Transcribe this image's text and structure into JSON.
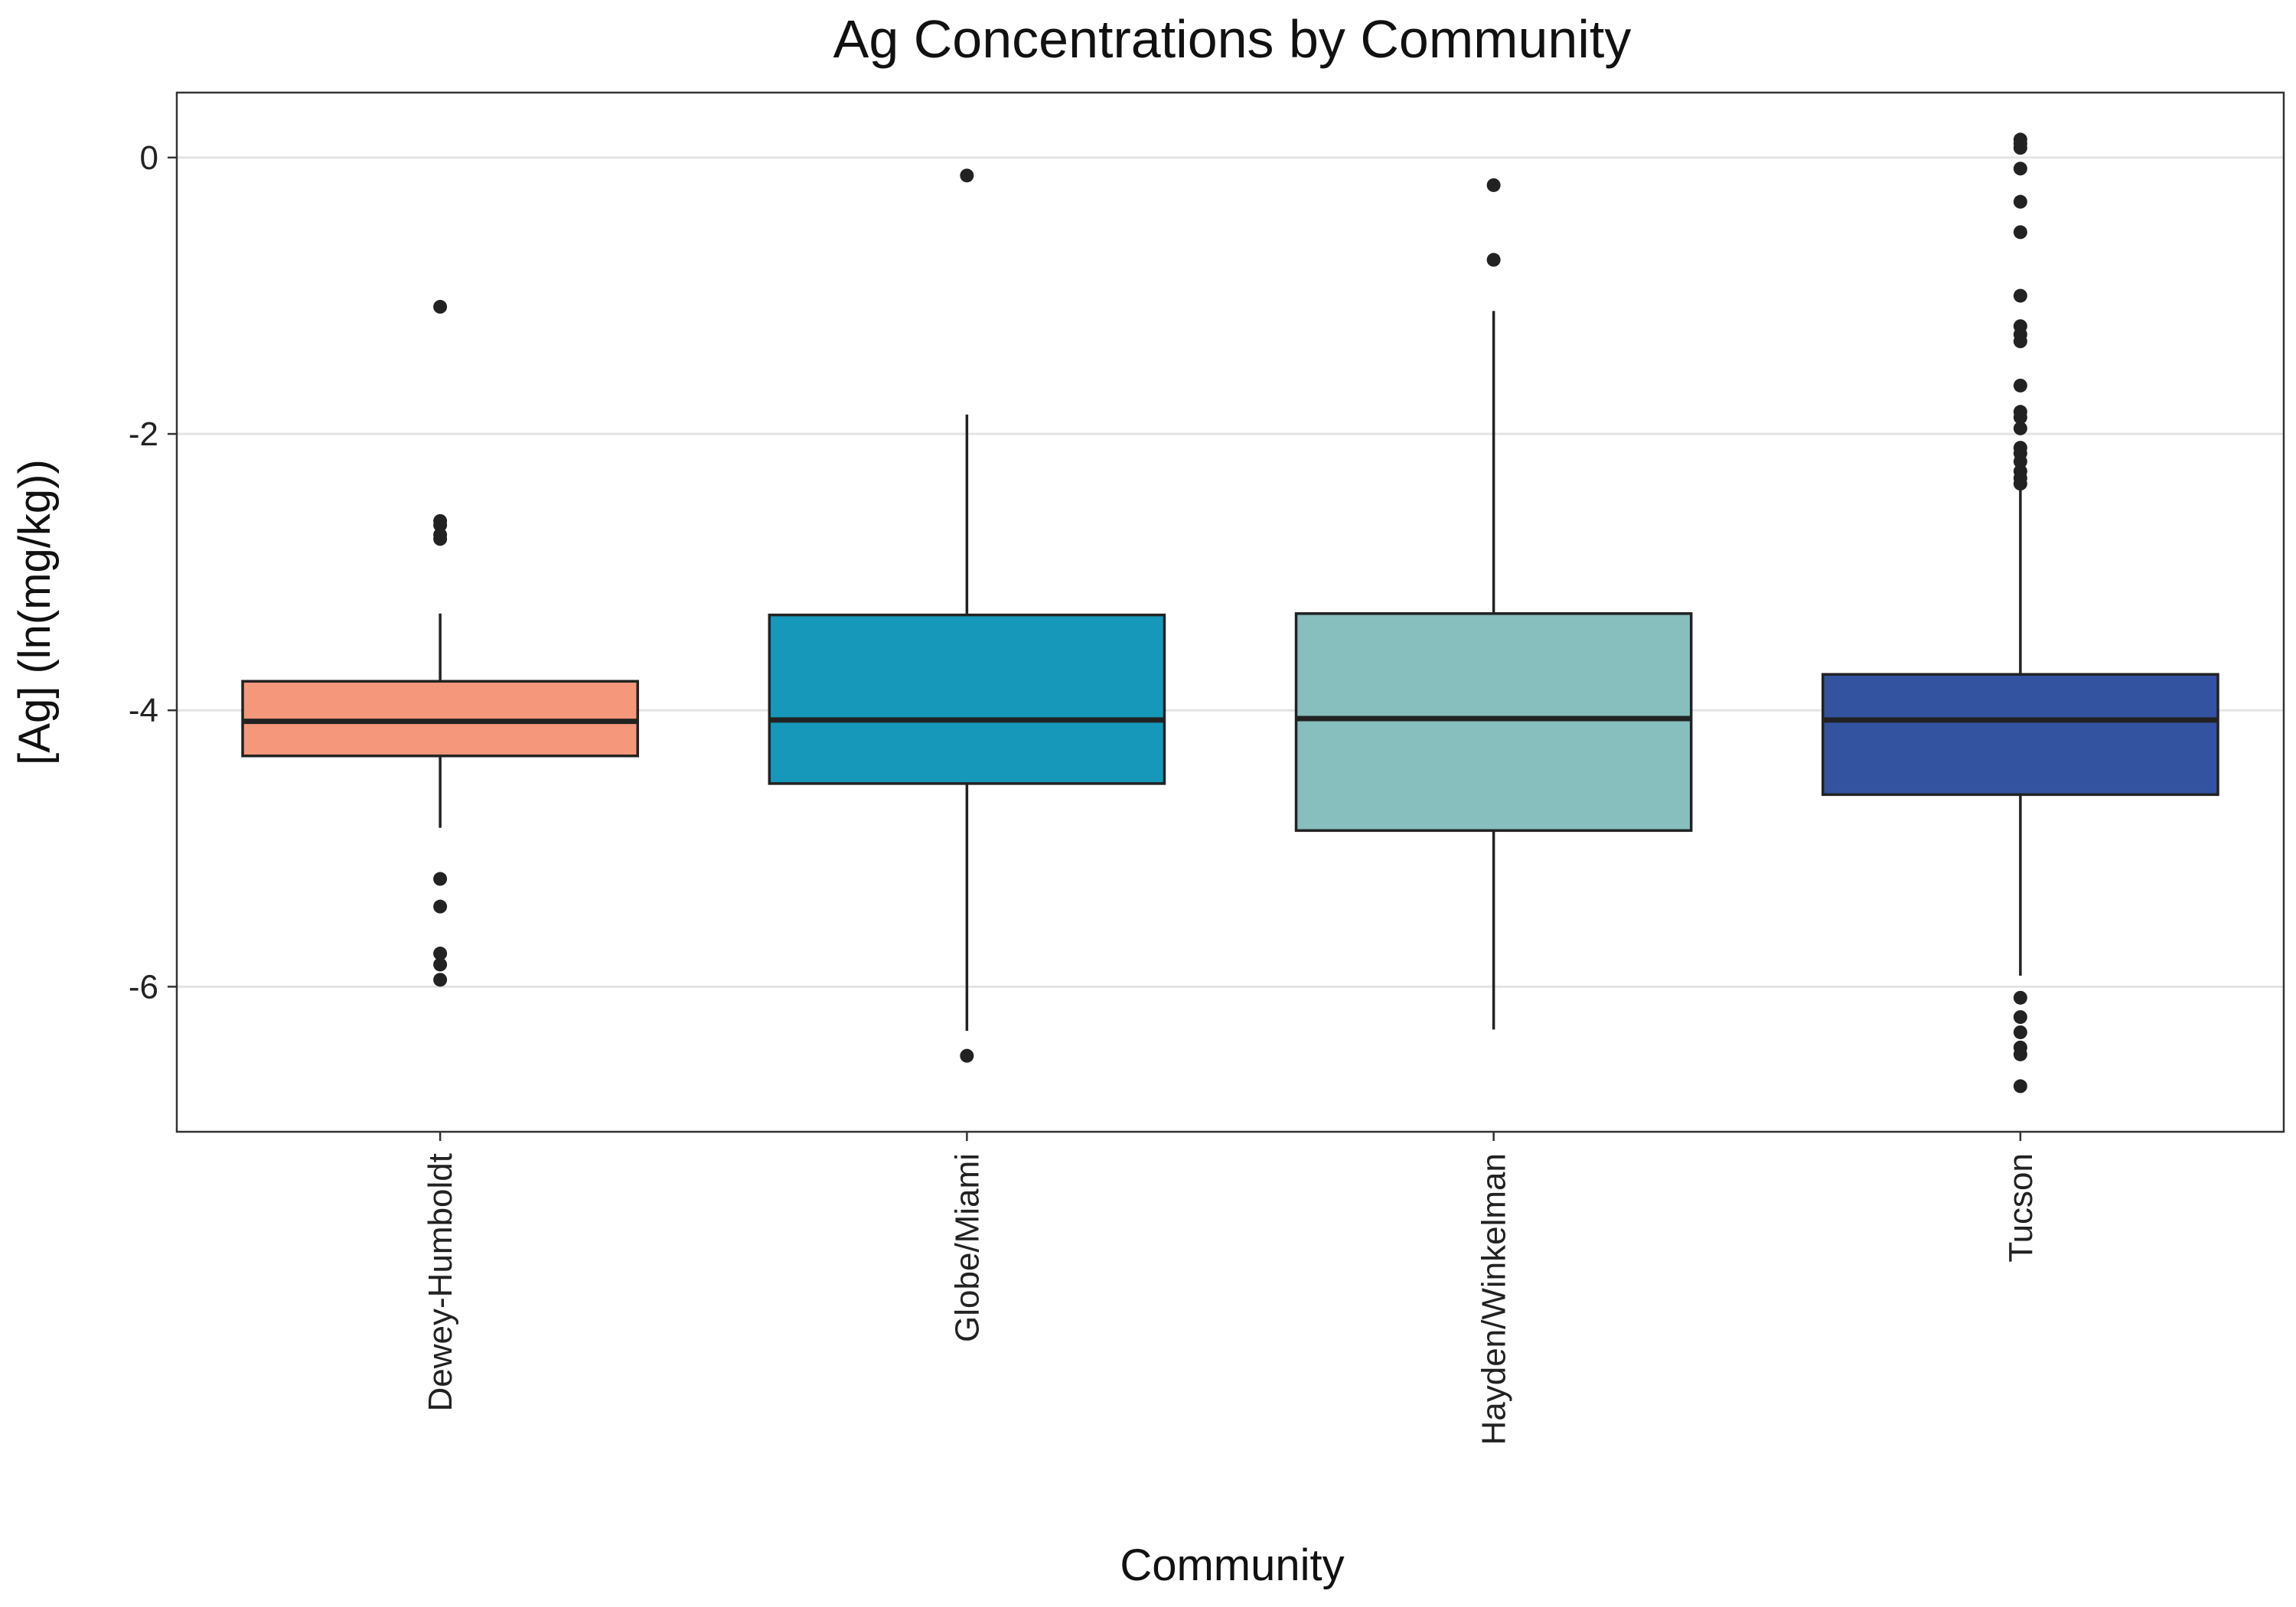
{
  "chart_data": {
    "type": "boxplot",
    "title": "Ag Concentrations by Community",
    "xlabel": "Community",
    "ylabel": "[Ag] (ln(mg/kg))",
    "ylim": [
      -7.05,
      0.47
    ],
    "yticks": [
      {
        "value": 0,
        "label": "0"
      },
      {
        "value": -2,
        "label": "-2"
      },
      {
        "value": -4,
        "label": "-4"
      },
      {
        "value": -6,
        "label": "-6"
      }
    ],
    "grid": "horizontal",
    "legend": "none",
    "categories": [
      "Dewey-Humboldt",
      "Globe/Miami",
      "Hayden/Winkelman",
      "Tucson"
    ],
    "boxes": [
      {
        "category": "Dewey-Humboldt",
        "color": "#F4977A",
        "whisker_low": -4.85,
        "q1": -4.33,
        "median": -4.08,
        "q3": -3.79,
        "whisker_high": -3.3,
        "outliers": [
          -1.08,
          -2.63,
          -2.66,
          -2.73,
          -2.76,
          -5.22,
          -5.42,
          -5.76,
          -5.84,
          -5.95
        ]
      },
      {
        "category": "Globe/Miami",
        "color": "#1598BA",
        "whisker_low": -6.32,
        "q1": -4.53,
        "median": -4.07,
        "q3": -3.31,
        "whisker_high": -1.86,
        "outliers": [
          -0.13,
          -6.5
        ]
      },
      {
        "category": "Hayden/Winkelman",
        "color": "#86BFBD",
        "whisker_low": -6.31,
        "q1": -4.87,
        "median": -4.06,
        "q3": -3.3,
        "whisker_high": -1.11,
        "outliers": [
          -0.2,
          -0.74
        ]
      },
      {
        "category": "Tucson",
        "color": "#3353A0",
        "whisker_low": -5.92,
        "q1": -4.61,
        "median": -4.07,
        "q3": -3.74,
        "whisker_high": -2.4,
        "outliers": [
          0.13,
          0.1,
          0.07,
          -0.08,
          -0.32,
          -0.54,
          -1.0,
          -1.22,
          -1.28,
          -1.33,
          -1.65,
          -1.84,
          -1.88,
          -1.96,
          -2.1,
          -2.14,
          -2.2,
          -2.27,
          -2.32,
          -2.36,
          -6.08,
          -6.22,
          -6.33,
          -6.44,
          -6.49,
          -6.72
        ]
      }
    ]
  }
}
